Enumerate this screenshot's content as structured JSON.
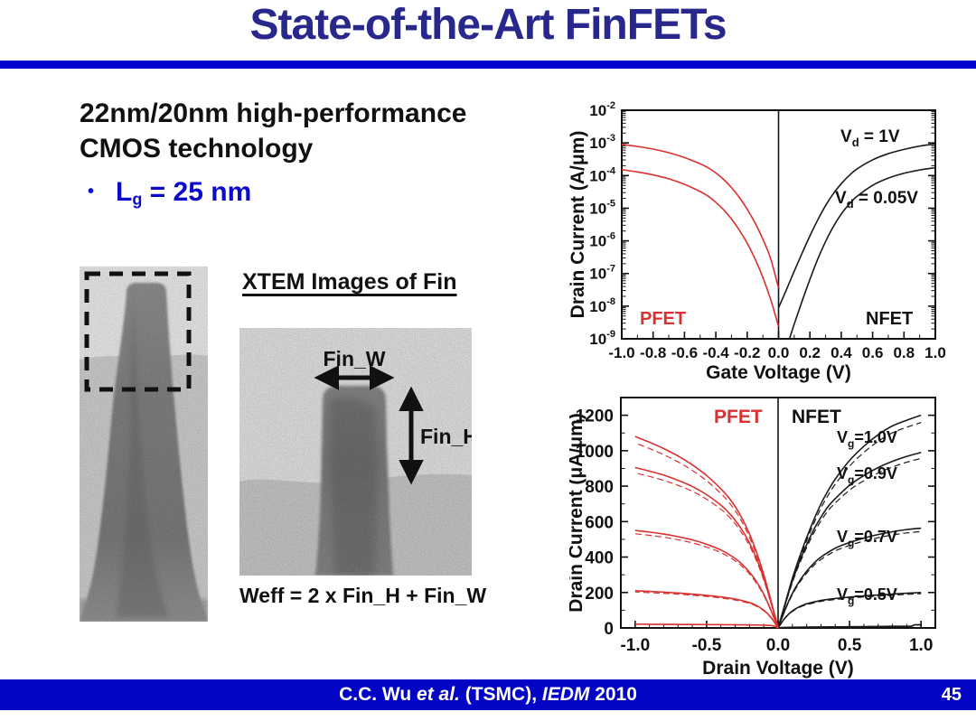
{
  "header": {
    "title": "State-of-the-Art FinFETs"
  },
  "intro": {
    "line1": "22nm/20nm high-performance",
    "line2": "CMOS technology",
    "bullet_glyph": "•",
    "bullet": {
      "base": "L",
      "sub": "g",
      "rest": " = 25 nm"
    }
  },
  "xtem": {
    "heading": "XTEM Images of Fin",
    "fin_w_label": "Fin_W",
    "fin_h_label": "Fin_H",
    "formula": "Weff = 2 x Fin_H + Fin_W"
  },
  "footer": {
    "parts": [
      "C.C. Wu ",
      "et al.",
      " (TSMC), ",
      "IEDM",
      " 2010"
    ],
    "page": "45"
  },
  "colors": {
    "title_navy": "#28288c",
    "accent_blue": "#0101ce",
    "bullet_blue": "#0a0ac8",
    "pfet_red": "#d93030",
    "nfet_black": "#1a1a1a",
    "footer_bar": "#0404c4"
  },
  "chart_data": [
    {
      "type": "line",
      "xlabel": "Gate Voltage (V)",
      "ylabel": "Drain Current (A/μm)",
      "xlim": [
        -1.0,
        1.0
      ],
      "x_ticks": [
        -1.0,
        -0.8,
        -0.6,
        -0.4,
        -0.2,
        0.0,
        0.2,
        0.4,
        0.6,
        0.8,
        1.0
      ],
      "x_minor_step": 0.1,
      "y_scale": "log",
      "y_exp_range": [
        -9,
        -2
      ],
      "grid": false,
      "double_lines": false,
      "series": [
        {
          "name": "PFET Vd=1V",
          "color": "#d93030",
          "points_log10": [
            [
              -1.0,
              -3.05
            ],
            [
              -0.9,
              -3.11
            ],
            [
              -0.8,
              -3.19
            ],
            [
              -0.7,
              -3.3
            ],
            [
              -0.6,
              -3.45
            ],
            [
              -0.5,
              -3.64
            ],
            [
              -0.45,
              -3.76
            ],
            [
              -0.4,
              -3.92
            ],
            [
              -0.35,
              -4.12
            ],
            [
              -0.3,
              -4.37
            ],
            [
              -0.25,
              -4.67
            ],
            [
              -0.2,
              -5.03
            ],
            [
              -0.15,
              -5.45
            ],
            [
              -0.1,
              -5.95
            ],
            [
              -0.05,
              -6.55
            ],
            [
              0.0,
              -7.45
            ]
          ]
        },
        {
          "name": "PFET Vd=0.05V",
          "color": "#d93030",
          "points_log10": [
            [
              -1.0,
              -3.82
            ],
            [
              -0.9,
              -3.89
            ],
            [
              -0.8,
              -3.98
            ],
            [
              -0.7,
              -4.1
            ],
            [
              -0.6,
              -4.27
            ],
            [
              -0.5,
              -4.49
            ],
            [
              -0.45,
              -4.63
            ],
            [
              -0.4,
              -4.82
            ],
            [
              -0.35,
              -5.05
            ],
            [
              -0.3,
              -5.33
            ],
            [
              -0.25,
              -5.67
            ],
            [
              -0.2,
              -6.07
            ],
            [
              -0.15,
              -6.55
            ],
            [
              -0.1,
              -7.12
            ],
            [
              -0.05,
              -7.8
            ],
            [
              0.0,
              -8.62
            ]
          ]
        },
        {
          "name": "NFET Vd=1V",
          "color": "#1a1a1a",
          "points_log10": [
            [
              0.0,
              -8.05
            ],
            [
              0.05,
              -7.5
            ],
            [
              0.1,
              -6.93
            ],
            [
              0.15,
              -6.38
            ],
            [
              0.2,
              -5.85
            ],
            [
              0.25,
              -5.36
            ],
            [
              0.3,
              -4.92
            ],
            [
              0.35,
              -4.55
            ],
            [
              0.4,
              -4.25
            ],
            [
              0.45,
              -4.0
            ],
            [
              0.5,
              -3.8
            ],
            [
              0.6,
              -3.52
            ],
            [
              0.7,
              -3.33
            ],
            [
              0.8,
              -3.2
            ],
            [
              0.9,
              -3.1
            ],
            [
              1.0,
              -3.03
            ]
          ]
        },
        {
          "name": "NFET Vd=0.05V",
          "color": "#1a1a1a",
          "points_log10": [
            [
              0.07,
              -9.0
            ],
            [
              0.1,
              -8.55
            ],
            [
              0.15,
              -7.85
            ],
            [
              0.2,
              -7.18
            ],
            [
              0.25,
              -6.56
            ],
            [
              0.3,
              -6.02
            ],
            [
              0.35,
              -5.56
            ],
            [
              0.4,
              -5.18
            ],
            [
              0.45,
              -4.88
            ],
            [
              0.5,
              -4.64
            ],
            [
              0.6,
              -4.3
            ],
            [
              0.7,
              -4.08
            ],
            [
              0.8,
              -3.93
            ],
            [
              0.9,
              -3.83
            ],
            [
              1.0,
              -3.76
            ]
          ]
        }
      ],
      "annotations": [
        {
          "text": "PFET",
          "color": "#d93030",
          "x": 78,
          "y": 264,
          "fs": 20
        },
        {
          "text": "NFET",
          "color": "#111111",
          "x": 328,
          "y": 264,
          "fs": 20
        },
        {
          "base": "V",
          "sub": "d",
          "rest": " = 1V",
          "color": "#111111",
          "x": 300,
          "y": 62,
          "fs": 19
        },
        {
          "base": "V",
          "sub": "d",
          "rest": " = 0.05V",
          "color": "#111111",
          "x": 294,
          "y": 130,
          "fs": 19
        }
      ]
    },
    {
      "type": "line",
      "xlabel": "Drain Voltage (V)",
      "ylabel": "Drain Current (μA/μm)",
      "xlim": [
        -1.1,
        1.1
      ],
      "x_ticks": [
        -1.0,
        -0.5,
        0.0,
        0.5,
        1.0
      ],
      "x_minor_step": 0.1,
      "y_scale": "linear",
      "ylim": [
        0,
        1300
      ],
      "y_ticks": [
        0,
        200,
        400,
        600,
        800,
        1000,
        1200
      ],
      "y_minor_step": 100,
      "grid": false,
      "double_lines": true,
      "series": [
        {
          "name": "NFET Vg=1.0V",
          "color": "#1a1a1a",
          "points": [
            [
              0,
              0
            ],
            [
              0.05,
              140
            ],
            [
              0.1,
              280
            ],
            [
              0.15,
              400
            ],
            [
              0.2,
              510
            ],
            [
              0.25,
              610
            ],
            [
              0.3,
              700
            ],
            [
              0.35,
              775
            ],
            [
              0.4,
              840
            ],
            [
              0.5,
              945
            ],
            [
              0.6,
              1025
            ],
            [
              0.7,
              1090
            ],
            [
              0.8,
              1140
            ],
            [
              0.9,
              1172
            ],
            [
              1.0,
              1200
            ]
          ]
        },
        {
          "name": "NFET Vg=0.9V",
          "color": "#1a1a1a",
          "points": [
            [
              0,
              0
            ],
            [
              0.05,
              135
            ],
            [
              0.1,
              265
            ],
            [
              0.15,
              375
            ],
            [
              0.2,
              470
            ],
            [
              0.25,
              555
            ],
            [
              0.3,
              625
            ],
            [
              0.35,
              685
            ],
            [
              0.4,
              730
            ],
            [
              0.5,
              805
            ],
            [
              0.6,
              860
            ],
            [
              0.7,
              905
            ],
            [
              0.8,
              940
            ],
            [
              0.9,
              968
            ],
            [
              1.0,
              990
            ]
          ]
        },
        {
          "name": "NFET Vg=0.7V",
          "color": "#1a1a1a",
          "points": [
            [
              0,
              0
            ],
            [
              0.05,
              105
            ],
            [
              0.1,
              195
            ],
            [
              0.15,
              265
            ],
            [
              0.2,
              320
            ],
            [
              0.25,
              365
            ],
            [
              0.3,
              400
            ],
            [
              0.4,
              450
            ],
            [
              0.5,
              482
            ],
            [
              0.6,
              507
            ],
            [
              0.7,
              527
            ],
            [
              0.8,
              543
            ],
            [
              0.9,
              555
            ],
            [
              1.0,
              563
            ]
          ]
        },
        {
          "name": "NFET Vg=0.5V",
          "color": "#1a1a1a",
          "points": [
            [
              0,
              0
            ],
            [
              0.05,
              58
            ],
            [
              0.1,
              96
            ],
            [
              0.15,
              120
            ],
            [
              0.2,
              136
            ],
            [
              0.3,
              155
            ],
            [
              0.4,
              166
            ],
            [
              0.5,
              174
            ],
            [
              0.6,
              181
            ],
            [
              0.7,
              186
            ],
            [
              0.8,
              191
            ],
            [
              0.9,
              196
            ],
            [
              1.0,
              200
            ]
          ]
        },
        {
          "name": "NFET Vg=0.3V",
          "color": "#1a1a1a",
          "points": [
            [
              0,
              0
            ],
            [
              0.05,
              3
            ],
            [
              0.2,
              5
            ],
            [
              0.5,
              7
            ],
            [
              0.8,
              9
            ],
            [
              0.93,
              10
            ],
            [
              0.95,
              17
            ],
            [
              1.0,
              18
            ]
          ]
        },
        {
          "name": "PFET Vg=1.0V",
          "color": "#d93030",
          "points": [
            [
              0,
              0
            ],
            [
              -0.05,
              155
            ],
            [
              -0.1,
              300
            ],
            [
              -0.15,
              425
            ],
            [
              -0.2,
              530
            ],
            [
              -0.25,
              615
            ],
            [
              -0.3,
              685
            ],
            [
              -0.35,
              740
            ],
            [
              -0.4,
              785
            ],
            [
              -0.5,
              860
            ],
            [
              -0.6,
              920
            ],
            [
              -0.7,
              970
            ],
            [
              -0.8,
              1012
            ],
            [
              -0.9,
              1048
            ],
            [
              -1.0,
              1080
            ]
          ]
        },
        {
          "name": "PFET Vg=0.9V",
          "color": "#d93030",
          "points": [
            [
              0,
              0
            ],
            [
              -0.05,
              145
            ],
            [
              -0.1,
              280
            ],
            [
              -0.15,
              390
            ],
            [
              -0.2,
              480
            ],
            [
              -0.25,
              550
            ],
            [
              -0.3,
              608
            ],
            [
              -0.35,
              655
            ],
            [
              -0.4,
              693
            ],
            [
              -0.5,
              752
            ],
            [
              -0.6,
              798
            ],
            [
              -0.7,
              833
            ],
            [
              -0.8,
              862
            ],
            [
              -0.9,
              885
            ],
            [
              -1.0,
              905
            ]
          ]
        },
        {
          "name": "PFET Vg=0.7V",
          "color": "#d93030",
          "points": [
            [
              0,
              0
            ],
            [
              -0.05,
              100
            ],
            [
              -0.1,
              190
            ],
            [
              -0.15,
              260
            ],
            [
              -0.2,
              315
            ],
            [
              -0.25,
              358
            ],
            [
              -0.3,
              392
            ],
            [
              -0.4,
              440
            ],
            [
              -0.5,
              472
            ],
            [
              -0.6,
              497
            ],
            [
              -0.7,
              515
            ],
            [
              -0.8,
              530
            ],
            [
              -0.9,
              541
            ],
            [
              -1.0,
              550
            ]
          ]
        },
        {
          "name": "PFET Vg=0.5V",
          "color": "#d93030",
          "points": [
            [
              0,
              0
            ],
            [
              -0.05,
              60
            ],
            [
              -0.1,
              100
            ],
            [
              -0.15,
              126
            ],
            [
              -0.2,
              143
            ],
            [
              -0.3,
              163
            ],
            [
              -0.4,
              175
            ],
            [
              -0.5,
              184
            ],
            [
              -0.6,
              191
            ],
            [
              -0.7,
              197
            ],
            [
              -0.8,
              202
            ],
            [
              -0.9,
              206
            ],
            [
              -1.0,
              210
            ]
          ]
        },
        {
          "name": "PFET Vg=0.3V",
          "color": "#d93030",
          "points": [
            [
              0,
              0
            ],
            [
              -0.05,
              14
            ],
            [
              -0.2,
              17
            ],
            [
              -0.5,
              19
            ],
            [
              -0.8,
              20
            ],
            [
              -0.95,
              21
            ],
            [
              -1.0,
              21
            ]
          ]
        }
      ],
      "annotations": [
        {
          "text": "PFET",
          "color": "#d93030",
          "x": 160,
          "y": 44,
          "fs": 21
        },
        {
          "text": "NFET",
          "color": "#111111",
          "x": 246,
          "y": 44,
          "fs": 21
        },
        {
          "base": "V",
          "sub": "g",
          "rest": "=1.0V",
          "color": "#111111",
          "x": 296,
          "y": 66,
          "fs": 18
        },
        {
          "base": "V",
          "sub": "g",
          "rest": "=0.9V",
          "color": "#111111",
          "x": 296,
          "y": 106,
          "fs": 18
        },
        {
          "base": "V",
          "sub": "g",
          "rest": "=0.7V",
          "color": "#111111",
          "x": 296,
          "y": 176,
          "fs": 18
        },
        {
          "base": "V",
          "sub": "g",
          "rest": "=0.5V",
          "color": "#111111",
          "x": 296,
          "y": 240,
          "fs": 18
        }
      ]
    }
  ]
}
